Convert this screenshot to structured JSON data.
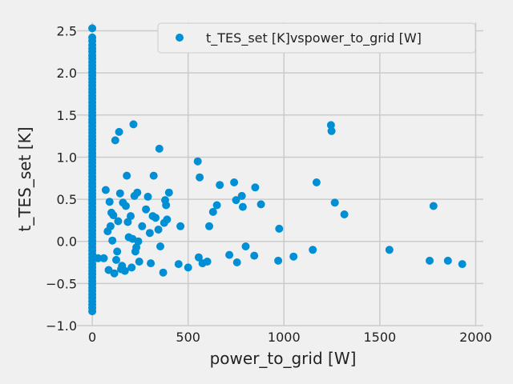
{
  "chart_data": {
    "type": "scatter",
    "title": "",
    "xlabel": "power_to_grid [W]",
    "ylabel": "t_TES_set [K]",
    "xlim": [
      -80,
      2040
    ],
    "ylim": [
      -1.0,
      2.6
    ],
    "x_ticks": [
      0,
      500,
      1000,
      1500,
      2000
    ],
    "x_tick_labels": [
      "0",
      "500",
      "1000",
      "1500",
      "2000"
    ],
    "y_ticks": [
      -1.0,
      -0.5,
      0.0,
      0.5,
      1.0,
      1.5,
      2.0,
      2.5
    ],
    "y_tick_labels": [
      "−1.0",
      "−0.5",
      "0.0",
      "0.5",
      "1.0",
      "1.5",
      "2.0",
      "2.5"
    ],
    "grid": true,
    "legend_position": "top-right",
    "colors": {
      "marker": "#008fd5",
      "background": "#f0f0f0",
      "grid": "#cbcbcb"
    },
    "series": [
      {
        "name": "t_TES_set [K]vspower_to_grid [W]",
        "points": [
          [
            0,
            2.53
          ],
          [
            0,
            2.42
          ],
          [
            0,
            2.38
          ],
          [
            0,
            2.33
          ],
          [
            0,
            2.29
          ],
          [
            0,
            2.25
          ],
          [
            0,
            2.21
          ],
          [
            0,
            2.17
          ],
          [
            0,
            2.13
          ],
          [
            0,
            2.09
          ],
          [
            0,
            2.05
          ],
          [
            0,
            2.01
          ],
          [
            0,
            1.97
          ],
          [
            0,
            1.93
          ],
          [
            0,
            1.89
          ],
          [
            0,
            1.85
          ],
          [
            0,
            1.81
          ],
          [
            0,
            1.77
          ],
          [
            0,
            1.73
          ],
          [
            0,
            1.69
          ],
          [
            0,
            1.65
          ],
          [
            0,
            1.61
          ],
          [
            0,
            1.57
          ],
          [
            0,
            1.53
          ],
          [
            0,
            1.49
          ],
          [
            0,
            1.45
          ],
          [
            0,
            1.41
          ],
          [
            0,
            1.37
          ],
          [
            0,
            1.33
          ],
          [
            0,
            1.29
          ],
          [
            0,
            1.25
          ],
          [
            0,
            1.21
          ],
          [
            0,
            1.17
          ],
          [
            0,
            1.13
          ],
          [
            0,
            1.09
          ],
          [
            0,
            1.05
          ],
          [
            0,
            1.01
          ],
          [
            0,
            0.97
          ],
          [
            0,
            0.93
          ],
          [
            0,
            0.89
          ],
          [
            0,
            0.85
          ],
          [
            0,
            0.81
          ],
          [
            0,
            0.77
          ],
          [
            0,
            0.73
          ],
          [
            0,
            0.69
          ],
          [
            0,
            0.65
          ],
          [
            0,
            0.61
          ],
          [
            0,
            0.57
          ],
          [
            0,
            0.53
          ],
          [
            0,
            0.49
          ],
          [
            0,
            0.45
          ],
          [
            0,
            0.41
          ],
          [
            0,
            0.37
          ],
          [
            0,
            0.33
          ],
          [
            0,
            0.29
          ],
          [
            0,
            0.25
          ],
          [
            0,
            0.21
          ],
          [
            0,
            0.17
          ],
          [
            0,
            0.13
          ],
          [
            0,
            0.09
          ],
          [
            0,
            0.05
          ],
          [
            0,
            0.01
          ],
          [
            0,
            -0.03
          ],
          [
            0,
            -0.07
          ],
          [
            0,
            -0.11
          ],
          [
            0,
            -0.15
          ],
          [
            0,
            -0.19
          ],
          [
            0,
            -0.23
          ],
          [
            0,
            -0.27
          ],
          [
            0,
            -0.31
          ],
          [
            0,
            -0.35
          ],
          [
            0,
            -0.39
          ],
          [
            0,
            -0.43
          ],
          [
            0,
            -0.47
          ],
          [
            0,
            -0.51
          ],
          [
            0,
            -0.55
          ],
          [
            0,
            -0.59
          ],
          [
            0,
            -0.63
          ],
          [
            0,
            -0.67
          ],
          [
            0,
            -0.71
          ],
          [
            0,
            -0.75
          ],
          [
            0,
            -0.79
          ],
          [
            0,
            -0.83
          ],
          [
            30,
            -0.2
          ],
          [
            60,
            -0.2
          ],
          [
            70,
            0.61
          ],
          [
            80,
            0.12
          ],
          [
            85,
            -0.34
          ],
          [
            90,
            0.47
          ],
          [
            95,
            0.18
          ],
          [
            100,
            0.34
          ],
          [
            105,
            0.01
          ],
          [
            110,
            0.31
          ],
          [
            115,
            -0.38
          ],
          [
            120,
            1.2
          ],
          [
            125,
            -0.22
          ],
          [
            130,
            -0.12
          ],
          [
            135,
            0.24
          ],
          [
            140,
            1.3
          ],
          [
            145,
            0.57
          ],
          [
            150,
            -0.33
          ],
          [
            155,
            -0.29
          ],
          [
            160,
            0.46
          ],
          [
            170,
            -0.35
          ],
          [
            175,
            0.42
          ],
          [
            180,
            0.78
          ],
          [
            185,
            0.23
          ],
          [
            190,
            0.05
          ],
          [
            200,
            0.3
          ],
          [
            205,
            -0.31
          ],
          [
            210,
            0.03
          ],
          [
            215,
            1.39
          ],
          [
            220,
            0.54
          ],
          [
            225,
            -0.12
          ],
          [
            230,
            -0.07
          ],
          [
            235,
            0.58
          ],
          [
            240,
            0.0
          ],
          [
            245,
            -0.24
          ],
          [
            260,
            0.18
          ],
          [
            280,
            0.38
          ],
          [
            290,
            0.53
          ],
          [
            300,
            0.1
          ],
          [
            305,
            -0.26
          ],
          [
            315,
            0.3
          ],
          [
            320,
            0.78
          ],
          [
            330,
            0.28
          ],
          [
            345,
            0.14
          ],
          [
            350,
            1.1
          ],
          [
            355,
            -0.06
          ],
          [
            370,
            -0.37
          ],
          [
            375,
            0.22
          ],
          [
            380,
            0.49
          ],
          [
            385,
            0.43
          ],
          [
            390,
            0.26
          ],
          [
            400,
            0.58
          ],
          [
            450,
            -0.27
          ],
          [
            460,
            0.18
          ],
          [
            500,
            -0.31
          ],
          [
            550,
            0.95
          ],
          [
            555,
            -0.19
          ],
          [
            560,
            0.76
          ],
          [
            575,
            -0.26
          ],
          [
            600,
            -0.24
          ],
          [
            610,
            0.18
          ],
          [
            630,
            0.35
          ],
          [
            650,
            0.43
          ],
          [
            665,
            0.67
          ],
          [
            715,
            -0.16
          ],
          [
            740,
            0.7
          ],
          [
            750,
            0.49
          ],
          [
            755,
            -0.25
          ],
          [
            780,
            0.54
          ],
          [
            785,
            0.41
          ],
          [
            800,
            -0.06
          ],
          [
            845,
            -0.17
          ],
          [
            850,
            0.64
          ],
          [
            880,
            0.44
          ],
          [
            970,
            -0.23
          ],
          [
            975,
            0.15
          ],
          [
            1050,
            -0.18
          ],
          [
            1150,
            -0.1
          ],
          [
            1170,
            0.7
          ],
          [
            1245,
            1.38
          ],
          [
            1248,
            1.31
          ],
          [
            1265,
            0.46
          ],
          [
            1315,
            0.32
          ],
          [
            1550,
            -0.1
          ],
          [
            1760,
            -0.23
          ],
          [
            1780,
            0.42
          ],
          [
            1855,
            -0.23
          ],
          [
            1930,
            -0.27
          ]
        ]
      }
    ]
  }
}
